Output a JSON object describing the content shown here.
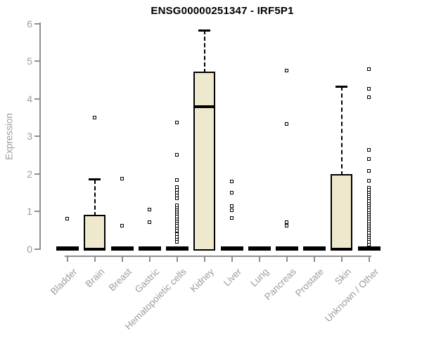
{
  "chart_data": {
    "type": "boxplot",
    "title": "ENSG00000251347 - IRF5P1",
    "ylabel": "Expression",
    "xlabel": "",
    "ylim": [
      0,
      6
    ],
    "yticks": [
      0,
      1,
      2,
      3,
      4,
      5,
      6
    ],
    "grid": false,
    "legend": false,
    "categories": [
      "Bladder",
      "Brain",
      "Breast",
      "Gastric",
      "Hematopoietic cells",
      "Kidney",
      "Liver",
      "Lung",
      "Pancreas",
      "Prostate",
      "Skin",
      "Unknown / Other"
    ],
    "series": [
      {
        "category": "Bladder",
        "q1": 0,
        "median": 0,
        "q3": 0,
        "whisker_low": 0,
        "whisker_high": 0,
        "outliers": [
          0.82
        ]
      },
      {
        "category": "Brain",
        "q1": 0,
        "median": 0,
        "q3": 0.88,
        "whisker_low": 0,
        "whisker_high": 1.85,
        "outliers": [
          3.5
        ]
      },
      {
        "category": "Breast",
        "q1": 0,
        "median": 0,
        "q3": 0,
        "whisker_low": 0,
        "whisker_high": 0,
        "outliers": [
          1.87,
          0.63
        ]
      },
      {
        "category": "Gastric",
        "q1": 0,
        "median": 0,
        "q3": 0,
        "whisker_low": 0,
        "whisker_high": 0,
        "outliers": [
          1.05,
          0.72
        ]
      },
      {
        "category": "Hematopoietic cells",
        "q1": 0,
        "median": 0,
        "q3": 0,
        "whisker_low": 0,
        "whisker_high": 0,
        "outliers": [
          3.37,
          2.52,
          1.84,
          1.66,
          1.57,
          1.5,
          1.43,
          1.36,
          1.16,
          1.1,
          1.04,
          0.98,
          0.92,
          0.86,
          0.8,
          0.74,
          0.68,
          0.62,
          0.56,
          0.5,
          0.41,
          0.33,
          0.26,
          0.19
        ]
      },
      {
        "category": "Kidney",
        "q1": 0,
        "median": 3.79,
        "q3": 4.69,
        "whisker_low": 0,
        "whisker_high": 5.82,
        "outliers": []
      },
      {
        "category": "Liver",
        "q1": 0,
        "median": 0,
        "q3": 0,
        "whisker_low": 0,
        "whisker_high": 0,
        "outliers": [
          1.81,
          1.5,
          1.15,
          1.04,
          0.84
        ]
      },
      {
        "category": "Lung",
        "q1": 0,
        "median": 0,
        "q3": 0,
        "whisker_low": 0,
        "whisker_high": 0,
        "outliers": []
      },
      {
        "category": "Pancreas",
        "q1": 0,
        "median": 0,
        "q3": 0,
        "whisker_low": 0,
        "whisker_high": 0,
        "outliers": [
          4.76,
          3.34,
          0.72,
          0.62
        ]
      },
      {
        "category": "Prostate",
        "q1": 0,
        "median": 0,
        "q3": 0,
        "whisker_low": 0,
        "whisker_high": 0,
        "outliers": []
      },
      {
        "category": "Skin",
        "q1": 0,
        "median": 0,
        "q3": 1.97,
        "whisker_low": 0,
        "whisker_high": 4.33,
        "outliers": []
      },
      {
        "category": "Unknown / Other",
        "q1": 0,
        "median": 0,
        "q3": 0,
        "whisker_low": 0,
        "whisker_high": 0,
        "outliers": [
          4.79,
          4.26,
          4.05,
          2.65,
          2.4,
          2.09,
          1.82,
          1.63,
          1.57,
          1.51,
          1.45,
          1.39,
          1.33,
          1.27,
          1.21,
          1.15,
          1.09,
          1.03,
          0.97,
          0.91,
          0.85,
          0.79,
          0.73,
          0.67,
          0.61,
          0.55,
          0.49,
          0.43,
          0.37,
          0.31,
          0.25,
          0.19,
          0.12
        ]
      }
    ],
    "colors": {
      "background": "#ffffff",
      "box_fill": "#EEE8CD",
      "box_border": "#000000",
      "median": "#000000",
      "whisker": "#000000",
      "outlier_border": "#000000",
      "outlier_fill": "#ffffff",
      "axis_line": "#8e8e8e",
      "axis_text": "#9c9c9c",
      "title_text": "#000000"
    }
  }
}
